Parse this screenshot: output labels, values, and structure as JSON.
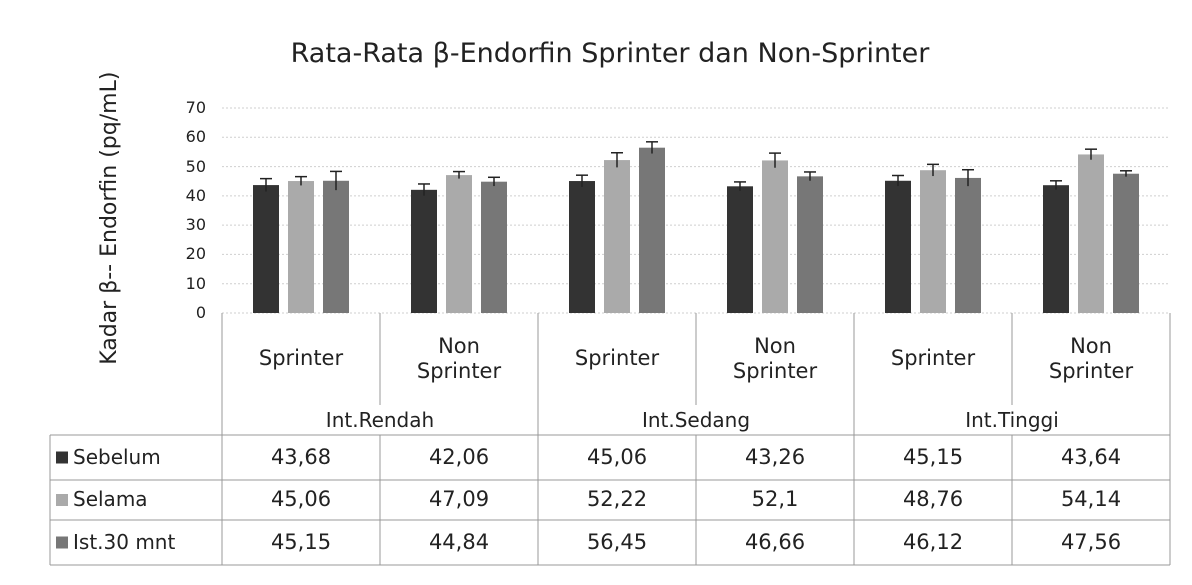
{
  "chart_data": {
    "type": "bar",
    "title": "Rata-Rata β-Endorfin Sprinter dan Non-Sprinter",
    "y_label": "Kadar β-- Endorfin (pq/mL)",
    "categories": [
      "Sprinter",
      "Non Sprinter",
      "Sprinter",
      "Non Sprinter",
      "Sprinter",
      "Non Sprinter"
    ],
    "groups": [
      "Int.Rendah",
      "Int.Sedang",
      "Int.Tinggi"
    ],
    "series": [
      {
        "name": "Sebelum",
        "color": "#333333",
        "values": [
          43.68,
          42.06,
          45.06,
          43.26,
          45.15,
          43.64
        ],
        "value_labels": [
          "43,68",
          "42,06",
          "45,06",
          "43,26",
          "45,15",
          "43,64"
        ],
        "errors": [
          2.2,
          2,
          2,
          1.5,
          1.8,
          1.5
        ]
      },
      {
        "name": "Selama",
        "color": "#aaaaaa",
        "values": [
          45.06,
          47.09,
          52.22,
          52.1,
          48.76,
          54.14
        ],
        "value_labels": [
          "45,06",
          "47,09",
          "52,22",
          "52,1",
          "48,76",
          "54,14"
        ],
        "errors": [
          1.5,
          1.2,
          2.5,
          2.5,
          2,
          1.8
        ]
      },
      {
        "name": "Ist.30 mnt",
        "color": "#777777",
        "values": [
          45.15,
          44.84,
          56.45,
          46.66,
          46.12,
          47.56
        ],
        "value_labels": [
          "45,15",
          "44,84",
          "56,45",
          "46,66",
          "46,12",
          "47,56"
        ],
        "errors": [
          3.2,
          1.5,
          2,
          1.5,
          2.8,
          1
        ]
      }
    ],
    "ylim": [
      0,
      70
    ],
    "yticks": [
      0,
      10,
      20,
      30,
      40,
      50,
      60,
      70
    ],
    "grid": true
  }
}
